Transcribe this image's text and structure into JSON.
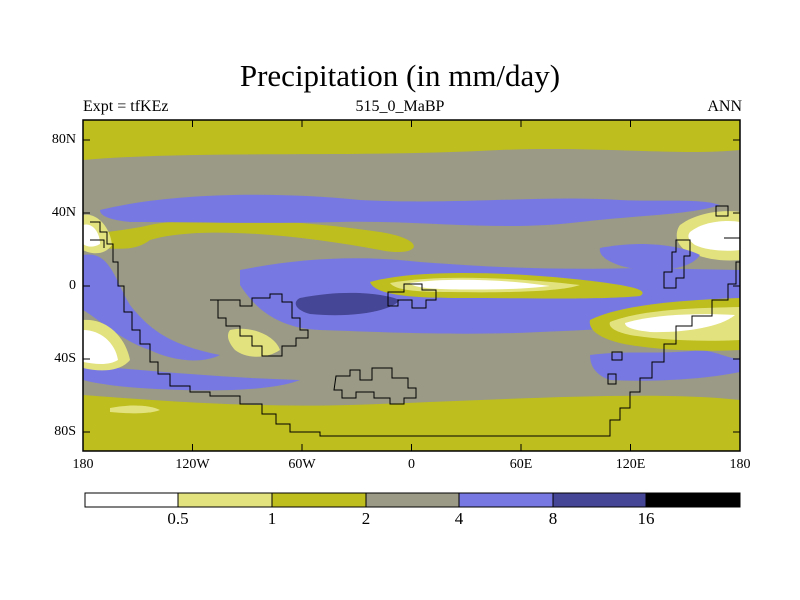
{
  "figure": {
    "title": "Precipitation (in mm/day)",
    "left_label": "Expt = tfKEz",
    "center_label": "515_0_MaBP",
    "right_label": "ANN"
  },
  "axes": {
    "y_ticks": [
      "80N",
      "40N",
      "0",
      "40S",
      "80S"
    ],
    "x_ticks": [
      "180",
      "120W",
      "60W",
      "0",
      "60E",
      "120E",
      "180"
    ]
  },
  "colorbar": {
    "levels": [
      "0.5",
      "1",
      "2",
      "4",
      "8",
      "16"
    ],
    "colors": [
      "#ffffff",
      "#e2e27e",
      "#bebe1e",
      "#9a9a86",
      "#7878e2",
      "#464696",
      "#000000"
    ]
  }
}
